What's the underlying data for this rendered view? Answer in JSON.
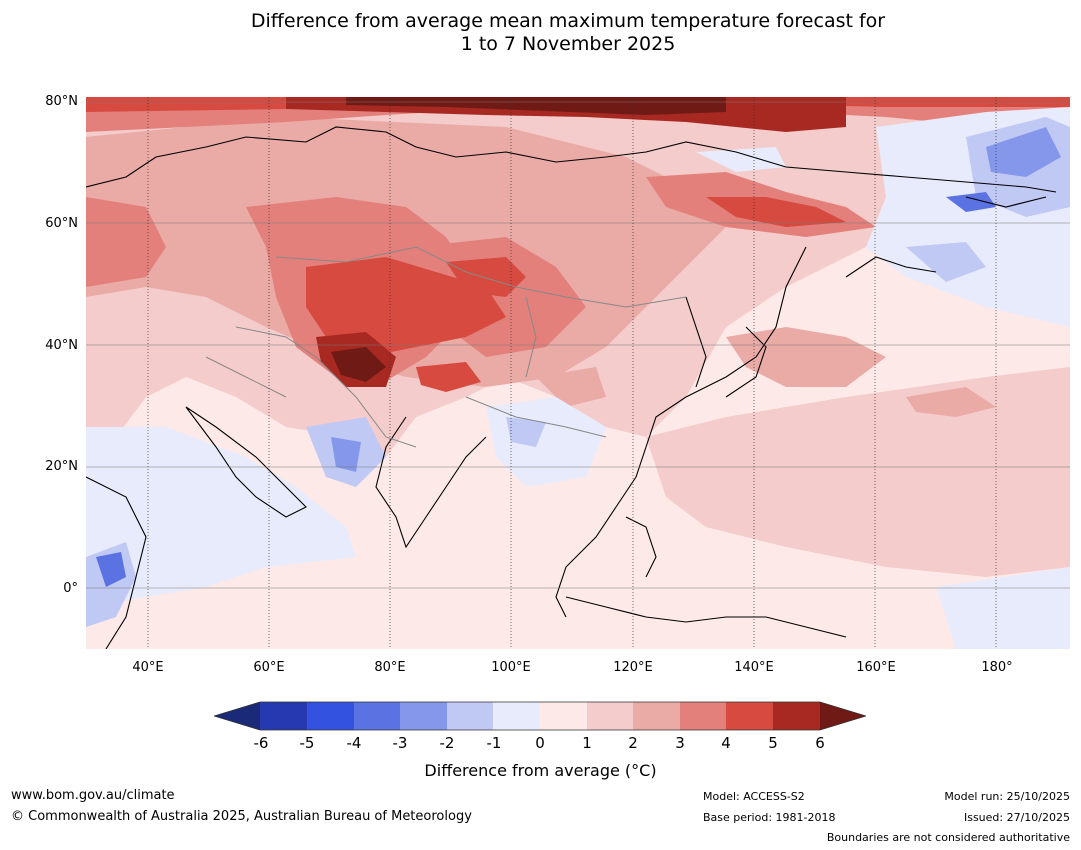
{
  "title_line1": "Difference from average mean maximum temperature forecast for",
  "title_line2": "1 to 7 November 2025",
  "latitude_labels": [
    "80°N",
    "60°N",
    "40°N",
    "20°N",
    "0°"
  ],
  "longitude_labels": [
    "40°E",
    "60°E",
    "80°E",
    "100°E",
    "120°E",
    "140°E",
    "160°E",
    "180°"
  ],
  "colorbar": {
    "label": "Difference from average (°C)",
    "ticks": [
      "-6",
      "-5",
      "-4",
      "-3",
      "-2",
      "-1",
      "0",
      "1",
      "2",
      "3",
      "4",
      "5",
      "6"
    ],
    "colors": [
      "#1a2a78",
      "#2639b0",
      "#3352e0",
      "#5a72e2",
      "#8597ea",
      "#c0c8f4",
      "#e8ebfb",
      "#fdeae8",
      "#f4cccb",
      "#eaaaa6",
      "#e3807b",
      "#d64a40",
      "#a82922",
      "#6f1a15"
    ]
  },
  "footer": {
    "website": "www.bom.gov.au/climate",
    "copyright": "© Commonwealth of Australia 2025, Australian Bureau of Meteorology",
    "model": "Model: ACCESS-S2",
    "base_period": "Base period: 1981-2018",
    "model_run": "Model run: 25/10/2025",
    "issued": "Issued: 27/10/2025",
    "disclaimer": "Boundaries are not considered authoritative"
  }
}
